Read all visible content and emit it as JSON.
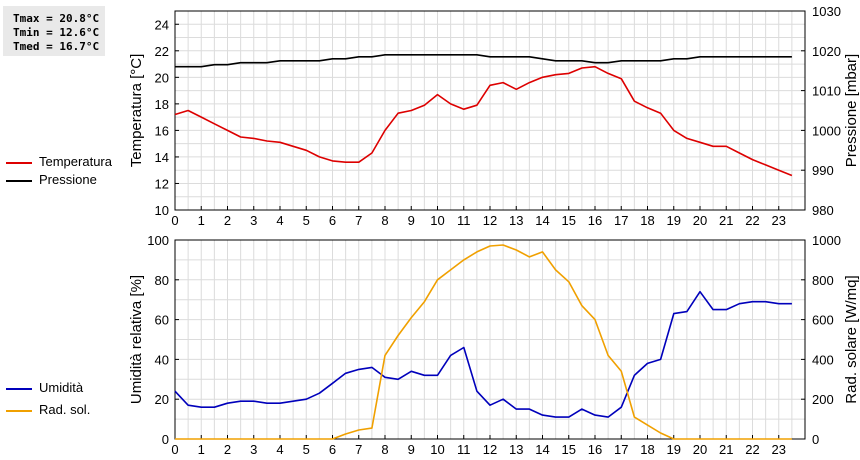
{
  "stats": {
    "tmax": "Tmax = 20.8°C",
    "tmin": "Tmin = 12.6°C",
    "tmed": "Tmed = 16.7°C"
  },
  "legend_top": [
    {
      "label": "Temperatura",
      "color": "#dd0000"
    },
    {
      "label": "Pressione",
      "color": "#000000"
    }
  ],
  "legend_bottom": [
    {
      "label": "Umidità",
      "color": "#0000bb"
    },
    {
      "label": "Rad. sol.",
      "color": "#f0a000"
    }
  ],
  "chart_data": [
    {
      "type": "line",
      "xlim": [
        0,
        24
      ],
      "xticks": [
        0,
        1,
        2,
        3,
        4,
        5,
        6,
        7,
        8,
        9,
        10,
        11,
        12,
        13,
        14,
        15,
        16,
        17,
        18,
        19,
        20,
        21,
        22,
        23
      ],
      "ylabel": "Temperatura [°C]",
      "ylim": [
        10,
        25
      ],
      "yticks": [
        10,
        12,
        14,
        16,
        18,
        20,
        22,
        24
      ],
      "y2label": "Pressione [mbar]",
      "y2lim": [
        980,
        1030
      ],
      "y2ticks": [
        980,
        990,
        1000,
        1010,
        1020,
        1030
      ],
      "grid": true,
      "series": [
        {
          "name": "Temperatura",
          "axis": "left",
          "color": "#dd0000",
          "x": [
            0,
            0.5,
            1,
            1.5,
            2,
            2.5,
            3,
            3.5,
            4,
            4.5,
            5,
            5.5,
            6,
            6.5,
            7,
            7.5,
            8,
            8.5,
            9,
            9.5,
            10,
            10.5,
            11,
            11.5,
            12,
            12.5,
            13,
            13.5,
            14,
            14.5,
            15,
            15.5,
            16,
            16.5,
            17,
            17.5,
            18,
            18.5,
            19,
            19.5,
            20,
            20.5,
            21,
            21.5,
            22,
            22.5,
            23,
            23.5
          ],
          "y": [
            17.2,
            17.5,
            17.0,
            16.5,
            16.0,
            15.5,
            15.4,
            15.2,
            15.1,
            14.8,
            14.5,
            14.0,
            13.7,
            13.6,
            13.6,
            14.3,
            16.0,
            17.3,
            17.5,
            17.9,
            18.7,
            18.0,
            17.6,
            17.9,
            19.4,
            19.6,
            19.1,
            19.6,
            20.0,
            20.2,
            20.3,
            20.7,
            20.8,
            20.3,
            19.9,
            18.2,
            17.7,
            17.3,
            16.0,
            15.4,
            15.1,
            14.8,
            14.8,
            14.3,
            13.8,
            13.4,
            13.0,
            12.6
          ]
        },
        {
          "name": "Pressione",
          "axis": "right",
          "color": "#000000",
          "x": [
            0,
            1,
            1.5,
            2,
            2.5,
            3,
            3.5,
            4,
            4.5,
            5,
            5.5,
            6,
            6.5,
            7,
            7.5,
            8,
            8.5,
            9,
            9.5,
            10,
            10.5,
            11,
            11.5,
            12,
            12.5,
            13,
            13.5,
            14,
            14.5,
            15,
            15.5,
            16,
            16.5,
            17,
            17.5,
            18,
            18.5,
            19,
            19.5,
            20,
            20.5,
            21,
            21.5,
            22,
            22.5,
            23,
            23.5
          ],
          "y": [
            1016,
            1016,
            1016.5,
            1016.5,
            1017,
            1017,
            1017,
            1017.5,
            1017.5,
            1017.5,
            1017.5,
            1018,
            1018,
            1018.5,
            1018.5,
            1019,
            1019,
            1019,
            1019,
            1019,
            1019,
            1019,
            1019,
            1018.5,
            1018.5,
            1018.5,
            1018.5,
            1018,
            1017.5,
            1017.5,
            1017.5,
            1017,
            1017,
            1017.5,
            1017.5,
            1017.5,
            1017.5,
            1018,
            1018,
            1018.5,
            1018.5,
            1018.5,
            1018.5,
            1018.5,
            1018.5,
            1018.5,
            1018.5
          ]
        }
      ]
    },
    {
      "type": "line",
      "xlim": [
        0,
        24
      ],
      "xticks": [
        0,
        1,
        2,
        3,
        4,
        5,
        6,
        7,
        8,
        9,
        10,
        11,
        12,
        13,
        14,
        15,
        16,
        17,
        18,
        19,
        20,
        21,
        22,
        23
      ],
      "ylabel": "Umidità relativa [%]",
      "ylim": [
        0,
        100
      ],
      "yticks": [
        0,
        20,
        40,
        60,
        80,
        100
      ],
      "y2label": "Rad. solare [W/mq]",
      "y2lim": [
        0,
        1000
      ],
      "y2ticks": [
        0,
        200,
        400,
        600,
        800,
        1000
      ],
      "grid": true,
      "series": [
        {
          "name": "Umidità",
          "axis": "left",
          "color": "#0000bb",
          "x": [
            0,
            0.5,
            1,
            1.5,
            2,
            2.5,
            3,
            3.5,
            4,
            4.5,
            5,
            5.5,
            6,
            6.5,
            7,
            7.5,
            8,
            8.5,
            9,
            9.5,
            10,
            10.5,
            11,
            11.5,
            12,
            12.5,
            13,
            13.5,
            14,
            14.5,
            15,
            15.5,
            16,
            16.5,
            17,
            17.5,
            18,
            18.5,
            19,
            19.5,
            20,
            20.5,
            21,
            21.5,
            22,
            22.5,
            23,
            23.5
          ],
          "y": [
            24,
            17,
            16,
            16,
            18,
            19,
            19,
            18,
            18,
            19,
            20,
            23,
            28,
            33,
            35,
            36,
            31,
            30,
            34,
            32,
            32,
            42,
            46,
            24,
            17,
            20,
            15,
            15,
            12,
            11,
            11,
            15,
            12,
            11,
            16,
            32,
            38,
            40,
            63,
            64,
            74,
            65,
            65,
            68,
            69,
            69,
            68,
            68
          ]
        },
        {
          "name": "Rad. sol.",
          "axis": "right",
          "color": "#f0a000",
          "x": [
            0,
            0.5,
            1,
            1.5,
            2,
            2.5,
            3,
            3.5,
            4,
            4.5,
            5,
            5.5,
            6,
            6.5,
            7,
            7.5,
            8,
            8.5,
            9,
            9.5,
            10,
            10.5,
            11,
            11.5,
            12,
            12.5,
            13,
            13.5,
            14,
            14.5,
            15,
            15.5,
            16,
            16.5,
            17,
            17.5,
            18,
            18.5,
            19,
            19.5,
            20,
            20.5,
            21,
            21.5,
            22,
            22.5,
            23,
            23.5
          ],
          "y": [
            0,
            0,
            0,
            0,
            0,
            0,
            0,
            0,
            0,
            0,
            0,
            0,
            0,
            25,
            45,
            55,
            420,
            520,
            610,
            690,
            800,
            850,
            900,
            940,
            970,
            975,
            950,
            915,
            940,
            850,
            790,
            670,
            600,
            420,
            340,
            110,
            70,
            30,
            0,
            0,
            0,
            0,
            0,
            0,
            0,
            0,
            0,
            0
          ]
        }
      ]
    }
  ]
}
